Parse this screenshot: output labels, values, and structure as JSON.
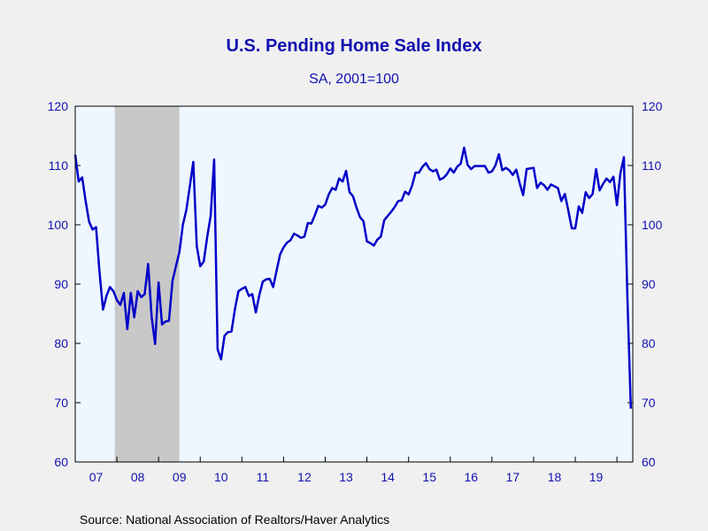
{
  "chart_data": {
    "type": "line",
    "title": "U.S. Pending Home Sale Index",
    "subtitle": "SA, 2001=100",
    "source": "Source:  National Association of Realtors/Haver Analytics",
    "ylim": [
      60,
      120
    ],
    "yticks": [
      "60",
      "70",
      "80",
      "90",
      "100",
      "110",
      "120"
    ],
    "xlim": [
      2007.0,
      2020.38
    ],
    "xticks": [
      {
        "label": "07",
        "pos": 2007.5
      },
      {
        "label": "08",
        "pos": 2008.5
      },
      {
        "label": "09",
        "pos": 2009.5
      },
      {
        "label": "10",
        "pos": 2010.5
      },
      {
        "label": "11",
        "pos": 2011.5
      },
      {
        "label": "12",
        "pos": 2012.5
      },
      {
        "label": "13",
        "pos": 2013.5
      },
      {
        "label": "14",
        "pos": 2014.5
      },
      {
        "label": "15",
        "pos": 2015.5
      },
      {
        "label": "16",
        "pos": 2016.5
      },
      {
        "label": "17",
        "pos": 2017.5
      },
      {
        "label": "18",
        "pos": 2018.5
      },
      {
        "label": "19",
        "pos": 2019.5
      }
    ],
    "recession": [
      2007.95,
      2009.5
    ],
    "line_color": "#0000c8",
    "plot_bg": "#eef6ff",
    "recession_color": "#c8c8c8",
    "grid": false,
    "series": [
      {
        "x_start": 2007.0,
        "x_step": 0.0833333,
        "values": [
          111.8,
          107.3,
          108.0,
          104.0,
          100.5,
          99.2,
          99.6,
          92.0,
          85.7,
          88.0,
          89.5,
          88.8,
          87.3,
          86.5,
          88.5,
          82.4,
          88.5,
          84.4,
          88.8,
          87.8,
          88.3,
          93.4,
          84.5,
          79.9,
          90.3,
          83.2,
          83.7,
          83.8,
          90.5,
          93.0,
          95.4,
          100.0,
          102.5,
          106.5,
          110.6,
          96.4,
          93.0,
          93.8,
          97.9,
          101.5,
          111.0,
          79.0,
          77.3,
          81.3,
          81.9,
          82.0,
          85.8,
          88.8,
          89.2,
          89.5,
          88.0,
          88.3,
          85.2,
          88.1,
          90.4,
          90.8,
          90.9,
          89.5,
          92.3,
          95.0,
          96.2,
          97.0,
          97.4,
          98.5,
          98.2,
          97.8,
          98.0,
          100.3,
          100.2,
          101.6,
          103.2,
          102.9,
          103.4,
          105.1,
          106.2,
          105.9,
          107.8,
          107.3,
          109.1,
          105.5,
          104.8,
          102.9,
          101.3,
          100.6,
          97.2,
          96.9,
          96.5,
          97.5,
          98.0,
          100.8,
          101.5,
          102.2,
          103.0,
          104.0,
          104.1,
          105.6,
          105.1,
          106.6,
          108.8,
          108.8,
          109.8,
          110.4,
          109.4,
          109.0,
          109.3,
          107.6,
          107.9,
          108.5,
          109.5,
          108.8,
          109.8,
          110.3,
          113.0,
          110.1,
          109.4,
          109.9,
          109.9,
          109.9,
          109.9,
          108.8,
          109.0,
          110.0,
          111.9,
          109.2,
          109.6,
          109.2,
          108.4,
          109.3,
          107.0,
          105.0,
          109.4,
          109.5,
          109.6,
          106.2,
          107.1,
          106.7,
          105.9,
          106.8,
          106.5,
          106.2,
          104.0,
          105.2,
          102.4,
          99.4,
          99.4,
          103.1,
          102.0,
          105.5,
          104.5,
          105.2,
          109.4,
          105.8,
          106.9,
          107.8,
          107.2,
          108.1,
          103.3,
          108.7,
          111.4,
          88.0,
          69.0
        ]
      }
    ]
  }
}
